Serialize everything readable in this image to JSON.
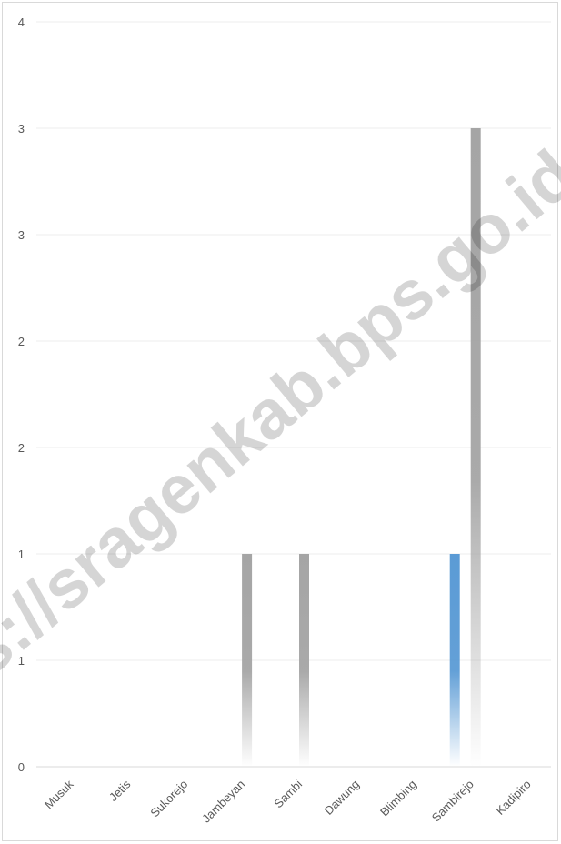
{
  "chart_data": {
    "type": "bar",
    "categories": [
      "Musuk",
      "Jetis",
      "Sukorejo",
      "Jambeyan",
      "Sambi",
      "Dawung",
      "Blimbing",
      "Sambirejo",
      "Kadipiro"
    ],
    "series": [
      {
        "values": [
          0,
          0,
          0,
          0,
          0,
          0,
          0,
          1,
          0
        ],
        "color": "#5b9bd5"
      },
      {
        "values": [
          0,
          0,
          0,
          1,
          1,
          0,
          0,
          3,
          0
        ],
        "color": "#a5a5a5"
      }
    ],
    "y_tick_labels": [
      "0",
      "1",
      "1",
      "2",
      "2",
      "3",
      "3",
      "4"
    ],
    "ylim": [
      0,
      3.5
    ],
    "title": "",
    "xlabel": "",
    "ylabel": "",
    "grid": true,
    "legend": "none",
    "bar_fill": "vertical gradient fading to white at base"
  },
  "watermark": {
    "text": "https://sragenkab.bps.go.id"
  }
}
